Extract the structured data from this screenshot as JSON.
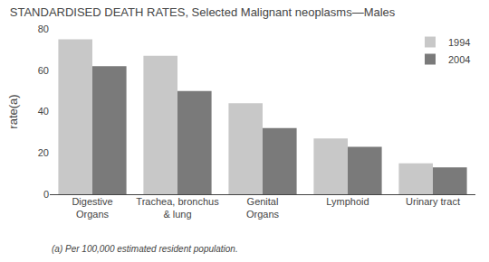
{
  "chart_data": {
    "type": "bar",
    "title": "STANDARDISED DEATH RATES, Selected Malignant neoplasms—Males",
    "ylabel": "rate(a)",
    "categories": [
      "Digestive\nOrgans",
      "Trachea, bronchus\n& lung",
      "Genital\nOrgans",
      "Lymphoid",
      "Urinary tract"
    ],
    "series": [
      {
        "name": "1994",
        "color": "#c8c8c8",
        "values": [
          75,
          67,
          44,
          27,
          15
        ]
      },
      {
        "name": "2004",
        "color": "#7a7a7a",
        "values": [
          62,
          50,
          32,
          23,
          13
        ]
      }
    ],
    "ylim": [
      0,
      80
    ],
    "yticks": [
      0,
      20,
      40,
      60,
      80
    ],
    "grid": false,
    "legend": "upper right",
    "annotations": [
      "(a) Per 100,000 estimated resident population."
    ]
  }
}
